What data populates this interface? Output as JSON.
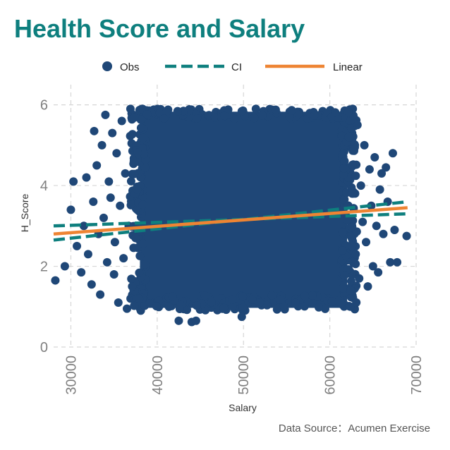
{
  "title": "Health Score and Salary",
  "source": "Data Source：Acumen Exercise",
  "colors": {
    "title": "#0e7f7e",
    "points": "#1f4777",
    "ci": "#0e7f7e",
    "linear": "#ee8433",
    "grid": "#d6d6d6",
    "ticks": "#808080"
  },
  "chart_data": {
    "type": "scatter",
    "title": "Health Score and Salary",
    "xlabel": "Salary",
    "ylabel": "H_Score",
    "xlim": [
      28000,
      70000
    ],
    "ylim": [
      0,
      6.5
    ],
    "xticks": [
      30000,
      40000,
      50000,
      60000,
      70000
    ],
    "yticks": [
      0,
      2,
      4,
      6
    ],
    "grid": true,
    "legend_position": "top",
    "legend": [
      {
        "label": "Obs",
        "kind": "point"
      },
      {
        "label": "CI",
        "kind": "dashed-line"
      },
      {
        "label": "Linear",
        "kind": "line"
      }
    ],
    "series": [
      {
        "name": "Obs",
        "type": "scatter",
        "cluster": {
          "x_range": [
            38000,
            62000
          ],
          "y_range": [
            0.9,
            5.9
          ]
        },
        "points": [
          {
            "x": 28200,
            "y": 1.65
          },
          {
            "x": 29300,
            "y": 2.0
          },
          {
            "x": 30000,
            "y": 3.4
          },
          {
            "x": 30300,
            "y": 4.1
          },
          {
            "x": 30700,
            "y": 2.5
          },
          {
            "x": 31200,
            "y": 1.85
          },
          {
            "x": 31500,
            "y": 3.0
          },
          {
            "x": 31800,
            "y": 4.2
          },
          {
            "x": 32000,
            "y": 2.3
          },
          {
            "x": 32400,
            "y": 1.55
          },
          {
            "x": 32600,
            "y": 3.6
          },
          {
            "x": 32700,
            "y": 5.35
          },
          {
            "x": 33000,
            "y": 4.5
          },
          {
            "x": 33200,
            "y": 2.8
          },
          {
            "x": 33400,
            "y": 1.3
          },
          {
            "x": 33600,
            "y": 5.0
          },
          {
            "x": 33800,
            "y": 3.2
          },
          {
            "x": 34000,
            "y": 5.75
          },
          {
            "x": 34200,
            "y": 2.1
          },
          {
            "x": 34400,
            "y": 4.1
          },
          {
            "x": 34600,
            "y": 3.7
          },
          {
            "x": 34800,
            "y": 5.3
          },
          {
            "x": 35000,
            "y": 1.8
          },
          {
            "x": 35100,
            "y": 2.6
          },
          {
            "x": 35300,
            "y": 4.8
          },
          {
            "x": 35500,
            "y": 1.1
          },
          {
            "x": 35700,
            "y": 3.5
          },
          {
            "x": 35900,
            "y": 5.6
          },
          {
            "x": 36100,
            "y": 2.2
          },
          {
            "x": 36300,
            "y": 4.3
          },
          {
            "x": 36500,
            "y": 0.95
          },
          {
            "x": 36700,
            "y": 3.0
          },
          {
            "x": 36900,
            "y": 5.9
          },
          {
            "x": 37100,
            "y": 1.5
          },
          {
            "x": 37300,
            "y": 4.6
          },
          {
            "x": 37500,
            "y": 2.7
          },
          {
            "x": 37700,
            "y": 3.9
          },
          {
            "x": 37900,
            "y": 1.2
          },
          {
            "x": 42500,
            "y": 0.65
          },
          {
            "x": 44000,
            "y": 0.62
          },
          {
            "x": 44500,
            "y": 0.65
          },
          {
            "x": 49800,
            "y": 0.75
          },
          {
            "x": 62200,
            "y": 5.2
          },
          {
            "x": 62400,
            "y": 1.4
          },
          {
            "x": 62600,
            "y": 3.8
          },
          {
            "x": 62800,
            "y": 4.9
          },
          {
            "x": 63000,
            "y": 2.3
          },
          {
            "x": 63200,
            "y": 5.5
          },
          {
            "x": 63400,
            "y": 1.7
          },
          {
            "x": 63600,
            "y": 4.0
          },
          {
            "x": 63800,
            "y": 3.1
          },
          {
            "x": 64000,
            "y": 5.0
          },
          {
            "x": 64200,
            "y": 2.6
          },
          {
            "x": 64400,
            "y": 1.5
          },
          {
            "x": 64600,
            "y": 4.4
          },
          {
            "x": 64800,
            "y": 3.5
          },
          {
            "x": 65000,
            "y": 2.0
          },
          {
            "x": 65200,
            "y": 4.7
          },
          {
            "x": 65400,
            "y": 3.0
          },
          {
            "x": 65600,
            "y": 1.85
          },
          {
            "x": 65800,
            "y": 3.9
          },
          {
            "x": 66000,
            "y": 4.3
          },
          {
            "x": 66200,
            "y": 2.8
          },
          {
            "x": 66500,
            "y": 4.45
          },
          {
            "x": 66700,
            "y": 3.6
          },
          {
            "x": 67000,
            "y": 2.1
          },
          {
            "x": 67300,
            "y": 4.8
          },
          {
            "x": 67500,
            "y": 2.9
          },
          {
            "x": 67800,
            "y": 2.1
          },
          {
            "x": 68900,
            "y": 2.75
          }
        ]
      },
      {
        "name": "CI",
        "type": "band",
        "lower": [
          {
            "x": 28000,
            "y": 2.65
          },
          {
            "x": 69000,
            "y": 3.6
          }
        ],
        "upper": [
          {
            "x": 28000,
            "y": 3.0
          },
          {
            "x": 69000,
            "y": 3.3
          }
        ]
      },
      {
        "name": "Linear",
        "type": "line",
        "points": [
          {
            "x": 28000,
            "y": 2.8
          },
          {
            "x": 69000,
            "y": 3.45
          }
        ]
      }
    ]
  }
}
